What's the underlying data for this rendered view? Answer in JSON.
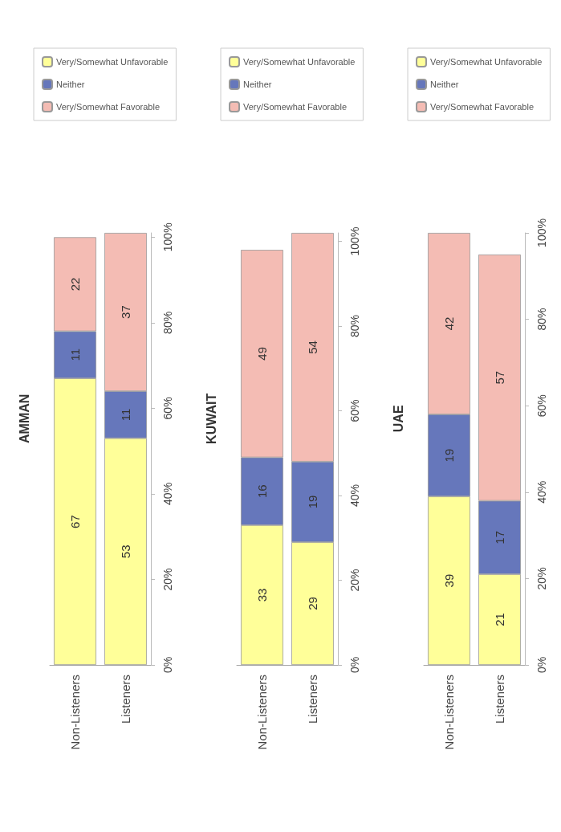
{
  "chart_data": [
    {
      "type": "bar",
      "title": "AMMAN",
      "stacked": true,
      "data_labels": true,
      "legend": "top",
      "categories": [
        "Non-Listeners",
        "Listeners"
      ],
      "ylim": [
        0,
        101
      ],
      "yticks": [
        {
          "value": 0,
          "label": "0%"
        },
        {
          "value": 20,
          "label": "20%"
        },
        {
          "value": 40,
          "label": "40%"
        },
        {
          "value": 60,
          "label": "60%"
        },
        {
          "value": 80,
          "label": "80%"
        },
        {
          "value": 100,
          "label": "100%"
        }
      ],
      "series": [
        {
          "name": "Very/Somewhat Unfavorable",
          "color": "#ffff99",
          "values": [
            67,
            53
          ]
        },
        {
          "name": "Neither",
          "color": "#6677bb",
          "values": [
            11,
            11
          ]
        },
        {
          "name": "Very/Somewhat Favorable",
          "color": "#f4bcb4",
          "values": [
            22,
            37
          ]
        }
      ]
    },
    {
      "type": "bar",
      "title": "KUWAIT",
      "stacked": true,
      "data_labels": true,
      "legend": "top",
      "categories": [
        "Non-Listeners",
        "Listeners"
      ],
      "ylim": [
        0,
        102
      ],
      "yticks": [
        {
          "value": 0,
          "label": "0%"
        },
        {
          "value": 20,
          "label": "20%"
        },
        {
          "value": 40,
          "label": "40%"
        },
        {
          "value": 60,
          "label": "60%"
        },
        {
          "value": 80,
          "label": "80%"
        },
        {
          "value": 100,
          "label": "100%"
        }
      ],
      "series": [
        {
          "name": "Very/Somewhat Unfavorable",
          "color": "#ffff99",
          "values": [
            33,
            29
          ]
        },
        {
          "name": "Neither",
          "color": "#6677bb",
          "values": [
            16,
            19
          ]
        },
        {
          "name": "Very/Somewhat Favorable",
          "color": "#f4bcb4",
          "values": [
            49,
            54
          ]
        }
      ]
    },
    {
      "type": "bar",
      "title": "UAE",
      "stacked": true,
      "data_labels": true,
      "legend": "top",
      "categories": [
        "Non-Listeners",
        "Listeners"
      ],
      "ylim": [
        0,
        100
      ],
      "yticks": [
        {
          "value": 0,
          "label": "0%"
        },
        {
          "value": 20,
          "label": "20%"
        },
        {
          "value": 40,
          "label": "40%"
        },
        {
          "value": 60,
          "label": "60%"
        },
        {
          "value": 80,
          "label": "80%"
        },
        {
          "value": 100,
          "label": "100%"
        }
      ],
      "series": [
        {
          "name": "Very/Somewhat Unfavorable",
          "color": "#ffff99",
          "values": [
            39,
            21
          ]
        },
        {
          "name": "Neither",
          "color": "#6677bb",
          "values": [
            19,
            17
          ]
        },
        {
          "name": "Very/Somewhat Favorable",
          "color": "#f4bcb4",
          "values": [
            42,
            57
          ]
        }
      ]
    }
  ]
}
